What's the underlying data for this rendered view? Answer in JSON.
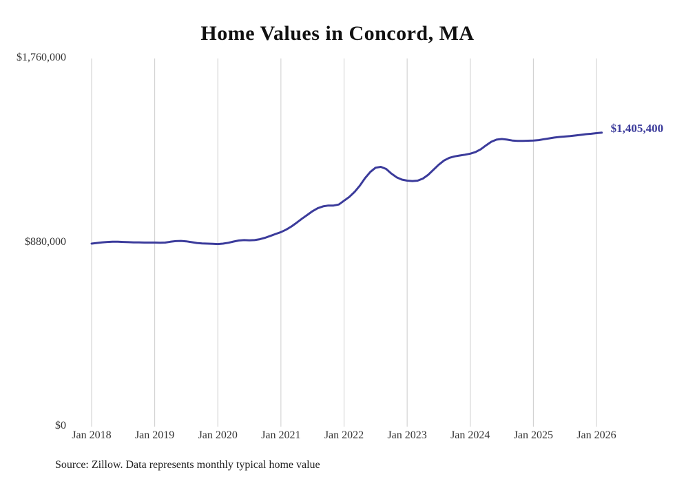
{
  "chart_data": {
    "type": "line",
    "title": "Home Values in Concord, MA",
    "source": "Source: Zillow. Data represents monthly typical home value",
    "end_label": "$1,405,400",
    "end_value": 1405400,
    "line_color": "#3b3b9b",
    "grid_color": "#cccccc",
    "ylim": [
      0,
      1760000
    ],
    "yticks": [
      {
        "label": "$1,760,000",
        "value": 1760000
      },
      {
        "label": "$880,000",
        "value": 880000
      },
      {
        "label": "$0",
        "value": 0
      }
    ],
    "categories": [
      "Jan 2018",
      "Jan 2019",
      "Jan 2020",
      "Jan 2021",
      "Jan 2022",
      "Jan 2023",
      "Jan 2024",
      "Jan 2025",
      "Jan 2026"
    ],
    "x_months_per_gap": 12,
    "series": [
      {
        "name": "Monthly typical home value",
        "start": "Jan 2018",
        "values": [
          875000,
          878000,
          881000,
          883000,
          884000,
          884000,
          883000,
          882000,
          881000,
          881000,
          880000,
          880000,
          880000,
          879000,
          880000,
          884000,
          887000,
          888000,
          886000,
          882000,
          878000,
          876000,
          875000,
          874000,
          873000,
          875000,
          879000,
          885000,
          890000,
          892000,
          891000,
          892000,
          896000,
          903000,
          912000,
          921000,
          930000,
          942000,
          957000,
          975000,
          994000,
          1012000,
          1030000,
          1044000,
          1053000,
          1057000,
          1057000,
          1062000,
          1080000,
          1098000,
          1122000,
          1152000,
          1188000,
          1218000,
          1238000,
          1242000,
          1232000,
          1210000,
          1192000,
          1181000,
          1176000,
          1174000,
          1176000,
          1186000,
          1204000,
          1228000,
          1252000,
          1272000,
          1285000,
          1292000,
          1296000,
          1300000,
          1305000,
          1313000,
          1326000,
          1345000,
          1362000,
          1372000,
          1375000,
          1372000,
          1368000,
          1366000,
          1366000,
          1367000,
          1368000,
          1370000,
          1374000,
          1378000,
          1382000,
          1385000,
          1387000,
          1389000,
          1392000,
          1395000,
          1398000,
          1400000,
          1403000,
          1405400
        ]
      }
    ]
  }
}
